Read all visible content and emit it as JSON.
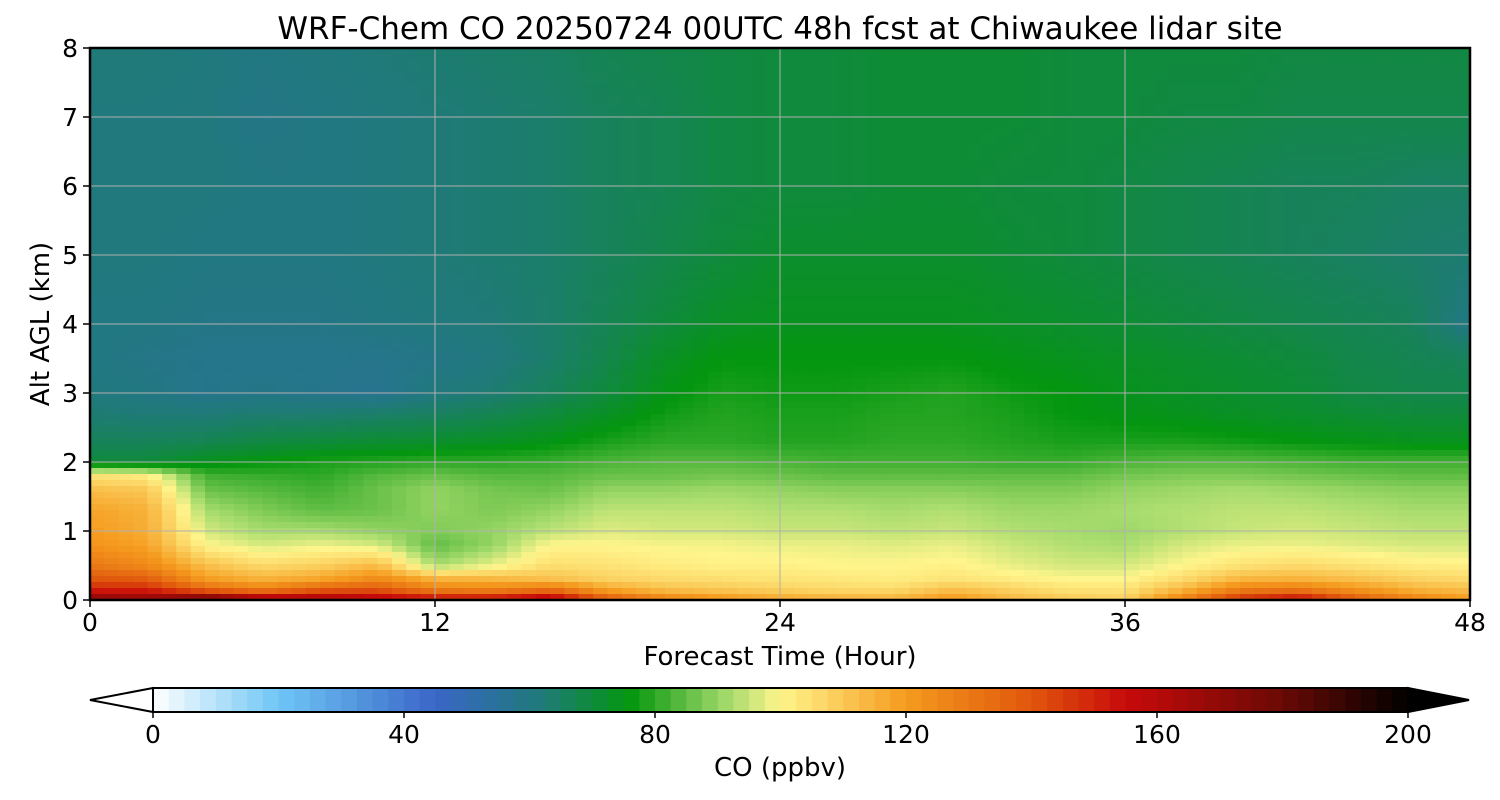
{
  "chart_data": {
    "type": "heatmap",
    "title": "WRF-Chem CO  20250724 00UTC 48h fcst at Chiwaukee lidar site",
    "xlabel": "Forecast Time (Hour)",
    "ylabel": "Alt AGL (km)",
    "xlim": [
      0,
      48
    ],
    "ylim": [
      0,
      8
    ],
    "xticks": [
      0,
      12,
      24,
      36,
      48
    ],
    "yticks": [
      0,
      1,
      2,
      3,
      4,
      5,
      6,
      7,
      8
    ],
    "grid": true,
    "colorbar": {
      "label": "CO  (ppbv)",
      "ticks": [
        0,
        40,
        80,
        120,
        160,
        200
      ],
      "range": [
        0,
        200
      ],
      "extend": "both",
      "stops": [
        {
          "v": 0,
          "color": "#ffffff"
        },
        {
          "v": 20,
          "color": "#6ec6f5"
        },
        {
          "v": 45,
          "color": "#3a66c8"
        },
        {
          "v": 62,
          "color": "#1f7a78"
        },
        {
          "v": 76,
          "color": "#04960f"
        },
        {
          "v": 92,
          "color": "#a8dc6e"
        },
        {
          "v": 100,
          "color": "#fff58c"
        },
        {
          "v": 120,
          "color": "#f59b1e"
        },
        {
          "v": 140,
          "color": "#e0560c"
        },
        {
          "v": 155,
          "color": "#c80a0a"
        },
        {
          "v": 180,
          "color": "#6a0a05"
        },
        {
          "v": 200,
          "color": "#000000"
        }
      ]
    },
    "altitude_km": [
      0,
      0.15,
      0.3,
      0.5,
      0.8,
      1.0,
      1.3,
      1.6,
      1.8,
      2.0,
      2.3,
      2.7,
      3.0,
      3.5,
      4.0,
      5.0,
      6.0,
      7.0,
      8.0
    ],
    "forecast_hour": [
      0,
      2,
      4,
      6,
      8,
      10,
      12,
      14,
      16,
      18,
      20,
      22,
      24,
      26,
      28,
      30,
      32,
      34,
      36,
      38,
      40,
      42,
      44,
      46,
      48
    ],
    "co_ppbv": [
      [
        175,
        172,
        185,
        170,
        168,
        162,
        158,
        158,
        165,
        140,
        128,
        122,
        118,
        116,
        115,
        122,
        114,
        110,
        108,
        128,
        150,
        158,
        140,
        128,
        120
      ],
      [
        150,
        150,
        135,
        128,
        138,
        140,
        128,
        126,
        132,
        118,
        112,
        110,
        108,
        106,
        106,
        112,
        108,
        104,
        104,
        114,
        128,
        130,
        122,
        115,
        112
      ],
      [
        140,
        138,
        120,
        115,
        118,
        125,
        115,
        114,
        112,
        108,
        106,
        105,
        104,
        103,
        102,
        104,
        102,
        100,
        100,
        106,
        114,
        115,
        112,
        108,
        106
      ],
      [
        130,
        125,
        112,
        106,
        108,
        113,
        92,
        98,
        105,
        104,
        102,
        101,
        101,
        100,
        100,
        101,
        98,
        96,
        96,
        100,
        104,
        106,
        104,
        102,
        101
      ],
      [
        122,
        118,
        100,
        96,
        98,
        96,
        85,
        90,
        100,
        100,
        99,
        99,
        98,
        98,
        97,
        98,
        95,
        93,
        92,
        96,
        98,
        98,
        97,
        96,
        96
      ],
      [
        120,
        116,
        96,
        92,
        92,
        90,
        88,
        90,
        94,
        97,
        96,
        96,
        95,
        95,
        94,
        95,
        93,
        92,
        91,
        93,
        95,
        96,
        95,
        94,
        94
      ],
      [
        118,
        115,
        92,
        88,
        85,
        86,
        90,
        88,
        90,
        94,
        94,
        94,
        93,
        93,
        92,
        93,
        91,
        91,
        92,
        93,
        94,
        94,
        93,
        92,
        92
      ],
      [
        112,
        110,
        86,
        84,
        82,
        86,
        90,
        87,
        86,
        90,
        90,
        91,
        90,
        89,
        89,
        89,
        88,
        88,
        90,
        91,
        92,
        91,
        90,
        89,
        89
      ],
      [
        104,
        102,
        82,
        81,
        80,
        84,
        86,
        84,
        84,
        86,
        86,
        87,
        86,
        85,
        85,
        85,
        85,
        85,
        87,
        88,
        88,
        87,
        86,
        85,
        85
      ],
      [
        70,
        70,
        74,
        76,
        78,
        79,
        80,
        80,
        81,
        83,
        84,
        84,
        83,
        82,
        82,
        82,
        81,
        81,
        83,
        84,
        84,
        83,
        82,
        82,
        82
      ],
      [
        66,
        66,
        67,
        69,
        70,
        71,
        72,
        73,
        75,
        78,
        80,
        80,
        79,
        79,
        80,
        80,
        79,
        78,
        78,
        78,
        77,
        76,
        75,
        74,
        74
      ],
      [
        63,
        62,
        62,
        63,
        63,
        64,
        65,
        67,
        70,
        73,
        77,
        79,
        78,
        78,
        79,
        79,
        78,
        76,
        75,
        74,
        73,
        72,
        71,
        70,
        70
      ],
      [
        61,
        60,
        58,
        59,
        58,
        57,
        61,
        63,
        66,
        70,
        75,
        78,
        77,
        77,
        78,
        79,
        77,
        76,
        74,
        73,
        72,
        71,
        69,
        68,
        68
      ],
      [
        60,
        59,
        58,
        58,
        58,
        58,
        59,
        61,
        64,
        68,
        73,
        76,
        76,
        76,
        76,
        76,
        75,
        74,
        73,
        72,
        71,
        70,
        68,
        67,
        66
      ],
      [
        60,
        60,
        59,
        59,
        59,
        60,
        61,
        62,
        64,
        67,
        70,
        73,
        74,
        74,
        74,
        74,
        73,
        72,
        71,
        70,
        69,
        68,
        67,
        66,
        60
      ],
      [
        61,
        61,
        60,
        60,
        60,
        61,
        62,
        63,
        64,
        66,
        68,
        70,
        72,
        72,
        72,
        72,
        71,
        70,
        69,
        68,
        67,
        66,
        65,
        64,
        63
      ],
      [
        61,
        61,
        61,
        60,
        60,
        61,
        62,
        63,
        64,
        66,
        67,
        69,
        70,
        70,
        71,
        71,
        70,
        70,
        69,
        68,
        67,
        66,
        66,
        65,
        65
      ],
      [
        61,
        61,
        61,
        59,
        60,
        61,
        62,
        63,
        64,
        66,
        67,
        69,
        70,
        70,
        71,
        71,
        71,
        70,
        70,
        69,
        69,
        68,
        68,
        68,
        68
      ],
      [
        62,
        62,
        61,
        60,
        61,
        62,
        63,
        64,
        65,
        67,
        68,
        69,
        70,
        70,
        71,
        71,
        71,
        70,
        70,
        70,
        70,
        69,
        69,
        69,
        69
      ]
    ]
  }
}
